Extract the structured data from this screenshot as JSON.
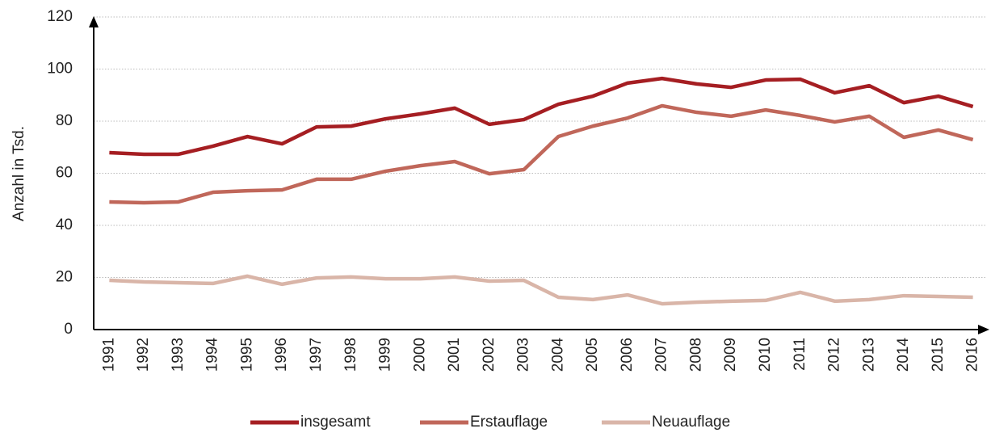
{
  "chart_data": {
    "type": "line",
    "y_label": "Anzahl in Tsd.",
    "categories": [
      "1991",
      "1992",
      "1993",
      "1994",
      "1995",
      "1996",
      "1997",
      "1998",
      "1999",
      "2000",
      "2001",
      "2002",
      "2003",
      "2004",
      "2005",
      "2006",
      "2007",
      "2008",
      "2009",
      "2010",
      "2011",
      "2012",
      "2013",
      "2014",
      "2015",
      "2016"
    ],
    "series": [
      {
        "name": "insgesamt",
        "color": "#a51e22",
        "values": [
          67.9,
          67.3,
          67.3,
          70.4,
          74.1,
          71.3,
          77.8,
          78.1,
          80.9,
          82.8,
          85,
          78.8,
          80.6,
          86.5,
          89.6,
          94.6,
          96.4,
          94.3,
          93,
          95.8,
          96.1,
          90.9,
          93.6,
          87.1,
          89.6,
          85.6
        ]
      },
      {
        "name": "Erstauflage",
        "color": "#c0675a",
        "values": [
          49,
          48.7,
          49,
          52.7,
          53.3,
          53.6,
          57.7,
          57.7,
          60.8,
          62.9,
          64.5,
          59.8,
          61.4,
          74.1,
          78.1,
          81.2,
          85.9,
          83.4,
          81.9,
          84.3,
          82.2,
          79.7,
          81.9,
          73.8,
          76.6,
          72.9
        ]
      },
      {
        "name": "Neuauflage",
        "color": "#d9b5a8",
        "values": [
          18.9,
          18.3,
          18,
          17.7,
          20.5,
          17.4,
          19.8,
          20.2,
          19.5,
          19.5,
          20.2,
          18.6,
          18.9,
          12.4,
          11.5,
          13.3,
          9.9,
          10.5,
          10.9,
          11.2,
          14.3,
          10.9,
          11.5,
          13,
          12.7,
          12.4
        ]
      }
    ],
    "ylim": [
      0,
      120
    ],
    "yticks": [
      0,
      20,
      40,
      60,
      80,
      100,
      120
    ],
    "grid": true,
    "legend": "bottom"
  }
}
